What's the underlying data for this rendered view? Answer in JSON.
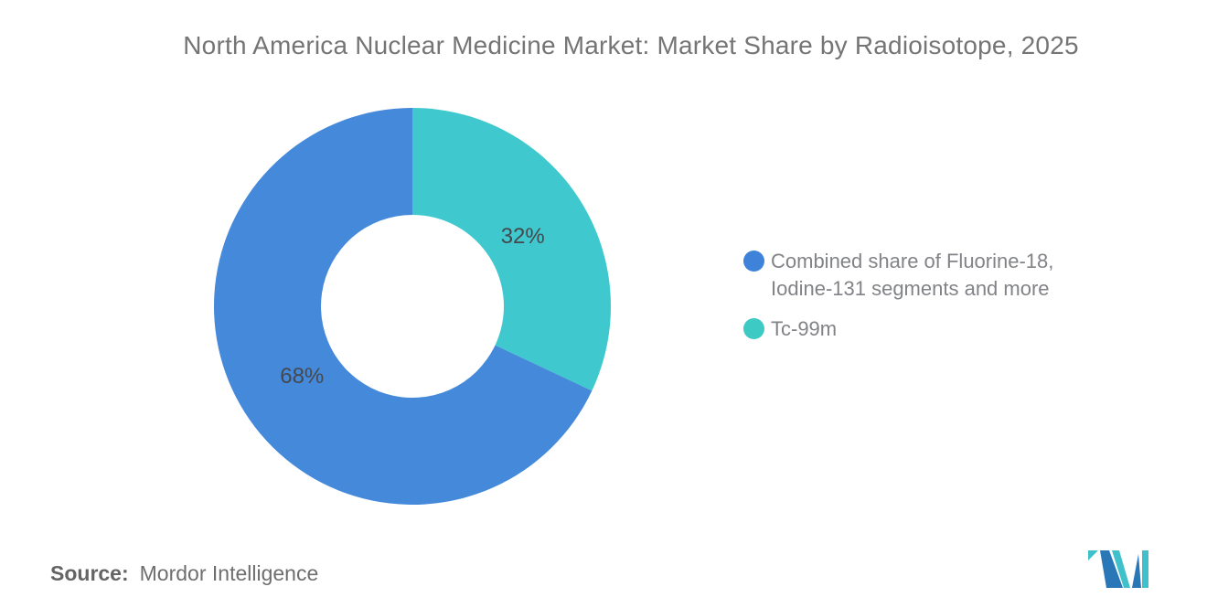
{
  "title": {
    "text": "North America Nuclear Medicine Market: Market Share by Radioisotope, 2025",
    "color": "#757575"
  },
  "chart_data": {
    "type": "pie",
    "subtype": "donut",
    "title": "North America Nuclear Medicine Market: Market Share by Radioisotope, 2025",
    "start_angle_deg": 0,
    "direction": "clockwise",
    "total": 100,
    "slices": [
      {
        "name": "Tc-99m",
        "value": 32,
        "percent_label": "32%",
        "color": "#3FC9CF"
      },
      {
        "name": "Combined share of Fluorine-18, Iodine-131 segments and more",
        "value": 68,
        "percent_label": "68%",
        "color": "#4589DB"
      }
    ],
    "data_label_color": "#45484D",
    "legend_position": "right",
    "grid": false
  },
  "legend": {
    "text_color": "#828387",
    "items": [
      {
        "label_lines": [
          "Combined share of Fluorine-18,",
          "Iodine-131 segments and more"
        ],
        "color": "#3E82DA"
      },
      {
        "label_lines": [
          "Tc-99m"
        ],
        "color": "#3DC9C4"
      }
    ]
  },
  "source": {
    "label": "Source:",
    "value": "Mordor Intelligence",
    "color": "#6E6E6E"
  },
  "logo": {
    "name": "mordor-intelligence-logo",
    "blue": "#2977B7",
    "teal": "#3FC0CB"
  }
}
